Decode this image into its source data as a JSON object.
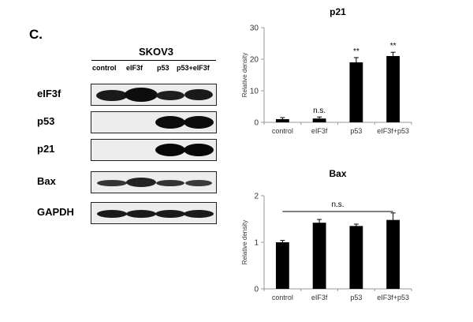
{
  "figure": {
    "panel_letter": "C.",
    "western_blot": {
      "cell_line": "SKOV3",
      "lanes": [
        "control",
        "eIF3f",
        "p53",
        "p53+eIF3f"
      ],
      "proteins": [
        {
          "name": "eIF3f",
          "intensity": [
            0.85,
            1.0,
            0.78,
            0.8
          ]
        },
        {
          "name": "p53",
          "intensity": [
            0,
            0,
            0.92,
            0.95
          ]
        },
        {
          "name": "p21",
          "intensity": [
            0,
            0,
            0.95,
            0.95
          ]
        },
        {
          "name": "Bax",
          "intensity": [
            0.55,
            0.7,
            0.55,
            0.5
          ]
        },
        {
          "name": "GAPDH",
          "intensity": [
            0.8,
            0.8,
            0.8,
            0.8
          ]
        }
      ]
    }
  },
  "chart_data": [
    {
      "type": "bar",
      "title": "p21",
      "ylabel": "Relative density",
      "xlabel": "",
      "ylim": [
        0,
        30
      ],
      "yticks": [
        0,
        10,
        20,
        30
      ],
      "categories": [
        "control",
        "eIF3f",
        "p53",
        "eIF3f+p53"
      ],
      "values": [
        1.0,
        1.2,
        19.0,
        21.0
      ],
      "errors": [
        0.5,
        0.5,
        1.5,
        1.2
      ],
      "annotations": [
        "",
        "n.s.",
        "**",
        "**"
      ],
      "bar_color": "#000000"
    },
    {
      "type": "bar",
      "title": "Bax",
      "ylabel": "Relative density",
      "xlabel": "",
      "ylim": [
        0,
        2
      ],
      "yticks": [
        0,
        1,
        2
      ],
      "categories": [
        "control",
        "eIF3f",
        "p53",
        "eIF3f+p53"
      ],
      "values": [
        1.0,
        1.42,
        1.35,
        1.48
      ],
      "errors": [
        0.04,
        0.07,
        0.04,
        0.15
      ],
      "bracket_label": "n.s.",
      "bar_color": "#000000"
    }
  ]
}
